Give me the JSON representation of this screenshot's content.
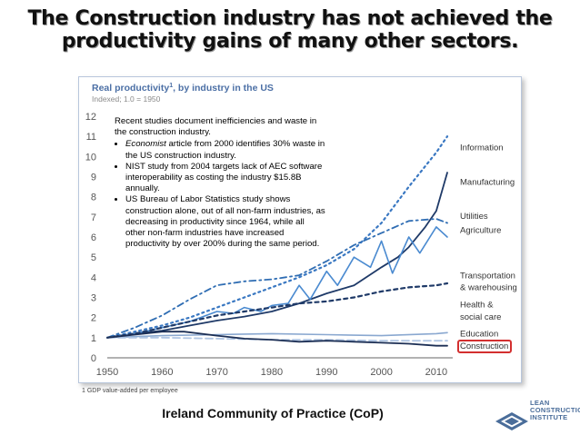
{
  "slide": {
    "title_line1": "The Construction industry has not achieved the",
    "title_line2": "productivity gains of many other sectors.",
    "footer": "Ireland Community of Practice (CoP)",
    "logo_lines": [
      "LEAN",
      "CONSTRUCTION",
      "INSTITUTE"
    ]
  },
  "callout": {
    "intro": "Recent studies document inefficiencies and waste in the construction industry.",
    "bullets": [
      {
        "em": "Economist",
        "text": " article from 2000 identifies 30% waste in the US construction industry."
      },
      {
        "em": "",
        "text": "NIST study from 2004 targets lack of AEC software interoperability as costing the industry $15.8B annually."
      },
      {
        "em": "",
        "text": "US Bureau of Labor Statistics study shows construction alone, out of all non-farm industries, as decreasing in productivity since 1964, while all other non-farm industries have increased productivity by over 200% during the same period."
      }
    ]
  },
  "chart_data": {
    "type": "line",
    "title": "Real productivity",
    "title_sup": "1",
    "title_suffix": ", by industry in the US",
    "subtitle": "Indexed;  1.0 = 1950",
    "footnote": "1 GDP  value-added per employee",
    "xlim": [
      1950,
      2013
    ],
    "ylim": [
      0,
      12
    ],
    "xticks": [
      1950,
      1960,
      1970,
      1980,
      1990,
      2000,
      2010
    ],
    "yticks": [
      0,
      1,
      2,
      3,
      4,
      5,
      6,
      7,
      8,
      9,
      10,
      11,
      12
    ],
    "grid": false,
    "legend": "right-edge labels",
    "series": [
      {
        "name": "Information",
        "color": "#3a78c2",
        "dash": "2,4",
        "width": 2.2,
        "x": [
          1950,
          1955,
          1960,
          1965,
          1970,
          1975,
          1980,
          1985,
          1990,
          1995,
          2000,
          2005,
          2010,
          2012
        ],
        "y": [
          1.0,
          1.3,
          1.6,
          2.0,
          2.5,
          3.0,
          3.5,
          4.0,
          4.6,
          5.4,
          6.7,
          8.5,
          10.2,
          11.0
        ]
      },
      {
        "name": "Manufacturing",
        "color": "#1f3a68",
        "dash": "",
        "width": 1.8,
        "x": [
          1950,
          1955,
          1960,
          1965,
          1970,
          1975,
          1980,
          1985,
          1990,
          1995,
          2000,
          2003,
          2005,
          2008,
          2010,
          2012
        ],
        "y": [
          1.0,
          1.2,
          1.35,
          1.6,
          1.85,
          2.05,
          2.3,
          2.7,
          3.2,
          3.6,
          4.5,
          5.0,
          5.5,
          6.5,
          7.3,
          9.2
        ]
      },
      {
        "name": "Utilities",
        "color": "#2f6db3",
        "dash": "7,4,2,4",
        "width": 1.8,
        "x": [
          1950,
          1955,
          1960,
          1965,
          1970,
          1975,
          1980,
          1985,
          1990,
          1995,
          2000,
          2005,
          2010,
          2012
        ],
        "y": [
          1.0,
          1.5,
          2.1,
          2.9,
          3.6,
          3.8,
          3.9,
          4.1,
          4.8,
          5.6,
          6.2,
          6.8,
          6.9,
          6.7
        ]
      },
      {
        "name": "Agriculture",
        "color": "#4a8ad0",
        "dash": "",
        "width": 1.6,
        "x": [
          1950,
          1955,
          1960,
          1965,
          1970,
          1973,
          1975,
          1978,
          1980,
          1983,
          1985,
          1987,
          1990,
          1992,
          1995,
          1998,
          2000,
          2002,
          2005,
          2007,
          2010,
          2012
        ],
        "y": [
          1.0,
          1.2,
          1.5,
          1.8,
          2.3,
          2.2,
          2.5,
          2.3,
          2.6,
          2.7,
          3.6,
          2.9,
          4.3,
          3.6,
          5.0,
          4.5,
          5.8,
          4.2,
          6.0,
          5.2,
          6.5,
          6.0
        ]
      },
      {
        "name": "Transportation & warehousing",
        "color": "#1f3a68",
        "dash": "4,4",
        "width": 2.2,
        "x": [
          1950,
          1955,
          1960,
          1965,
          1970,
          1975,
          1980,
          1985,
          1990,
          1995,
          2000,
          2005,
          2010,
          2012
        ],
        "y": [
          1.0,
          1.2,
          1.5,
          1.8,
          2.1,
          2.3,
          2.5,
          2.7,
          2.8,
          3.0,
          3.3,
          3.5,
          3.6,
          3.7
        ]
      },
      {
        "name": "Health & social care",
        "color": "#8aa8d0",
        "dash": "",
        "width": 1.6,
        "x": [
          1950,
          1960,
          1970,
          1980,
          1990,
          2000,
          2010,
          2012
        ],
        "y": [
          1.0,
          1.1,
          1.15,
          1.2,
          1.15,
          1.1,
          1.2,
          1.25
        ]
      },
      {
        "name": "Education",
        "color": "#b0c6e4",
        "dash": "8,4",
        "width": 1.8,
        "x": [
          1950,
          1960,
          1970,
          1980,
          1990,
          2000,
          2010,
          2012
        ],
        "y": [
          1.0,
          1.0,
          0.95,
          0.9,
          0.9,
          0.85,
          0.85,
          0.85
        ]
      },
      {
        "name": "Construction",
        "color": "#1c2f55",
        "dash": "",
        "width": 1.8,
        "x": [
          1950,
          1955,
          1960,
          1964,
          1970,
          1975,
          1980,
          1985,
          1990,
          1995,
          2000,
          2005,
          2010,
          2012
        ],
        "y": [
          1.0,
          1.15,
          1.3,
          1.3,
          1.1,
          0.95,
          0.9,
          0.8,
          0.85,
          0.8,
          0.75,
          0.7,
          0.6,
          0.6
        ]
      }
    ],
    "labels": [
      {
        "text": "Information",
        "y": 10.3
      },
      {
        "text": "Manufacturing",
        "y": 8.6
      },
      {
        "text": "Utilities",
        "y": 6.9
      },
      {
        "text": "Agriculture",
        "y": 6.2
      },
      {
        "text": "Transportation",
        "y": 3.95
      },
      {
        "text": "& warehousing",
        "y": 3.35
      },
      {
        "text": "Health &",
        "y": 2.5
      },
      {
        "text": "social care",
        "y": 1.9
      },
      {
        "text": "Education",
        "y": 1.05
      },
      {
        "text": "Construction",
        "y": 0.45,
        "highlight": "#d32f2f"
      }
    ]
  }
}
